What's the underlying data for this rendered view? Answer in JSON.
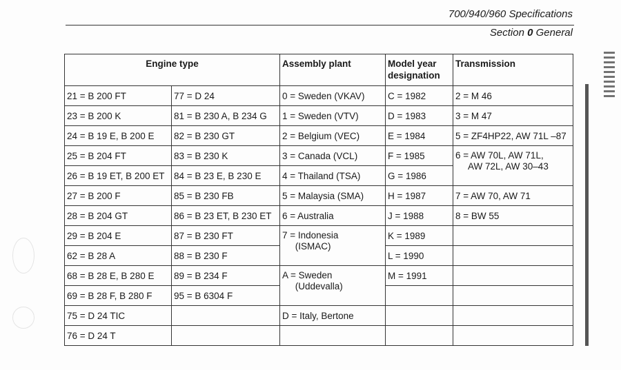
{
  "header": {
    "title": "700/940/960 Specifications",
    "section_prefix": "Section ",
    "section_number": "0",
    "section_name": " General"
  },
  "table": {
    "headers": {
      "engine": "Engine type",
      "plant": "Assembly plant",
      "model_year": "Model year designation",
      "transmission": "Transmission"
    },
    "engine_col1": [
      "21 = B 200 FT",
      "23 = B 200 K",
      "24 = B 19 E, B 200 E",
      "25 = B 204 FT",
      "26 = B 19 ET, B 200 ET",
      "27 = B 200 F",
      "28 = B 204 GT",
      "29 = B 204 E",
      "62 = B 28 A",
      "68 = B 28 E, B 280 E",
      "69 = B 28 F, B 280 F",
      "75 = D 24 TIC",
      "76 = D 24 T"
    ],
    "engine_col2": [
      "77 = D 24",
      "81 = B 230 A, B 234 G",
      "82 = B 230 GT",
      "83 = B 230 K",
      "84 = B 23 E, B 230 E",
      "85 = B 230 FB",
      "86 = B 23 ET, B 230 ET",
      "87 = B 230 FT",
      "88 = B 230 F",
      "89 = B 234 F",
      "95 = B 6304 F"
    ],
    "plant": [
      "0 = Sweden (VKAV)",
      "1 = Sweden (VTV)",
      "2 = Belgium (VEC)",
      "3 = Canada (VCL)",
      "4 = Thailand (TSA)",
      "5 = Malaysia (SMA)",
      "6 = Australia",
      "7 = Indonesia\n     (ISMAC)",
      "A = Sweden\n     (Uddevalla)",
      "D = Italy, Bertone"
    ],
    "model_year": [
      "C = 1982",
      "D = 1983",
      "E = 1984",
      "F = 1985",
      "G = 1986",
      "H = 1987",
      "J = 1988",
      "K = 1989",
      "L = 1990",
      "M = 1991"
    ],
    "transmission": [
      "2 = M 46",
      "3 = M 47",
      "5 = ZF4HP22, AW 71L –87",
      "6 = AW 70L, AW 71L,\n     AW 72L, AW 30–43",
      "7 = AW 70, AW 71",
      "8 = BW 55"
    ]
  }
}
